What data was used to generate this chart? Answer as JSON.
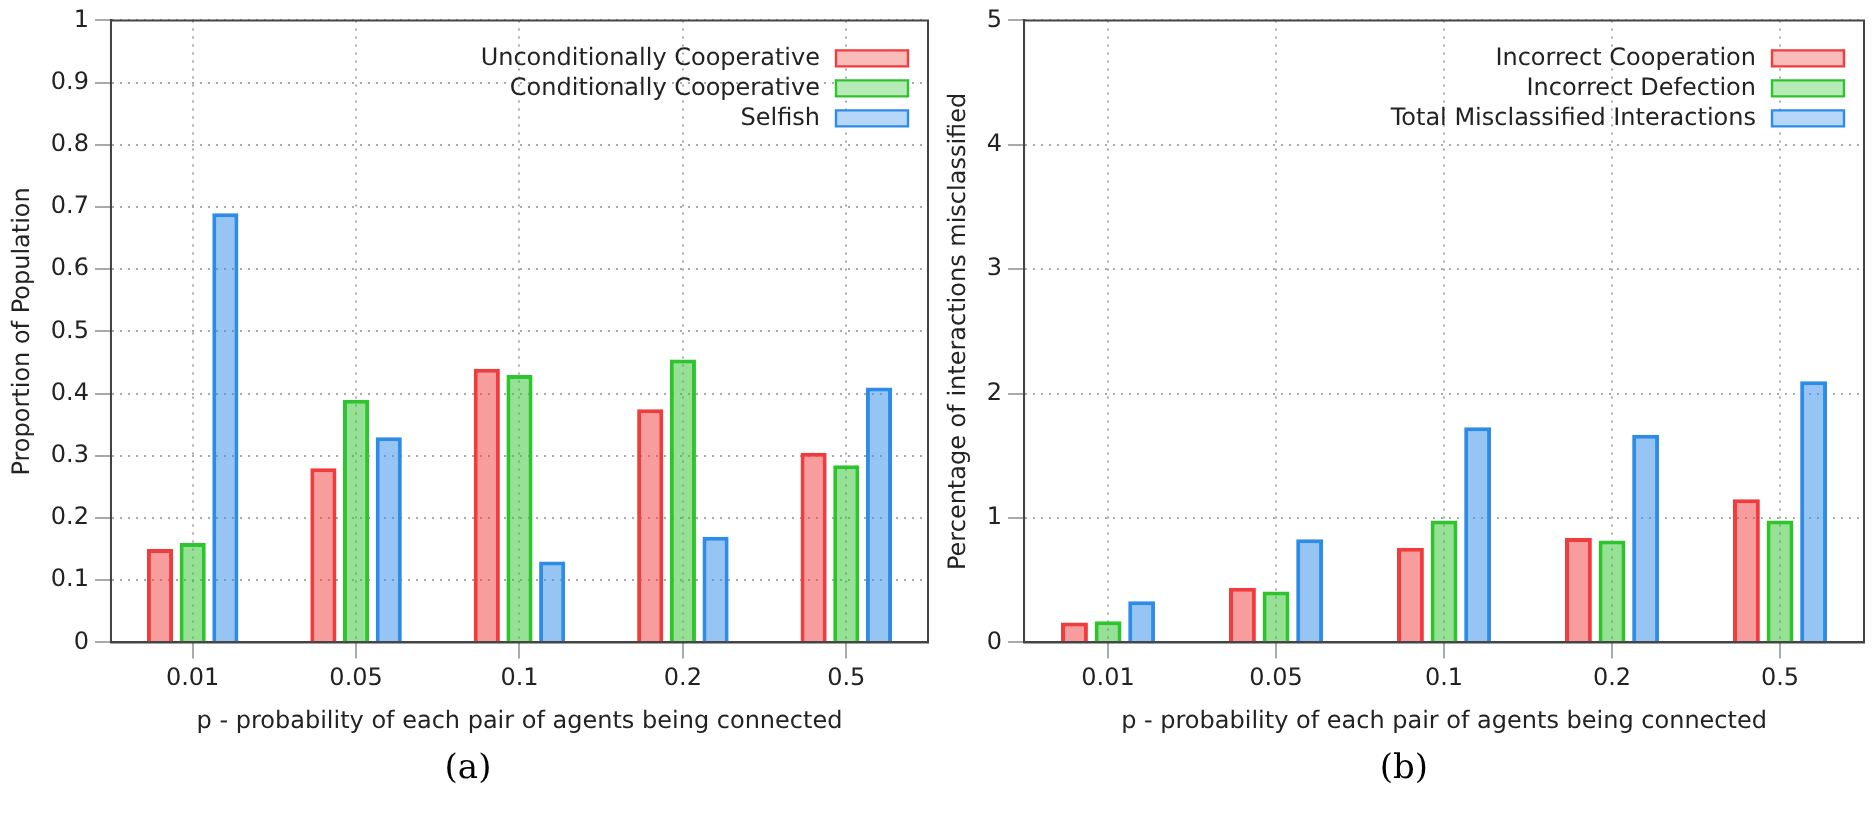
{
  "chart_data": [
    {
      "type": "bar",
      "xlabel": "p - probability of each pair of agents being connected",
      "ylabel": "Proportion of Population",
      "categories": [
        "0.01",
        "0.05",
        "0.1",
        "0.2",
        "0.5"
      ],
      "series": [
        {
          "name": "Unconditionally Cooperative",
          "color": "#f03c3c",
          "values": [
            0.15,
            0.28,
            0.44,
            0.375,
            0.305
          ]
        },
        {
          "name": "Conditionally Cooperative",
          "color": "#2ec42e",
          "values": [
            0.16,
            0.39,
            0.43,
            0.455,
            0.285
          ]
        },
        {
          "name": "Selfish",
          "color": "#2f8be8",
          "values": [
            0.69,
            0.33,
            0.13,
            0.17,
            0.41
          ]
        }
      ],
      "ylim": [
        0,
        1
      ],
      "yticks": [
        0,
        0.1,
        0.2,
        0.3,
        0.4,
        0.5,
        0.6,
        0.7,
        0.8,
        0.9,
        1
      ],
      "grid": true,
      "legend": "top right",
      "annotations": [
        "(a)"
      ]
    },
    {
      "type": "bar",
      "xlabel": "p - probability of each pair of agents being connected",
      "ylabel": "Percentage of interactions misclassified",
      "categories": [
        "0.01",
        "0.05",
        "0.1",
        "0.2",
        "0.5"
      ],
      "series": [
        {
          "name": "Incorrect Cooperation",
          "color": "#f03c3c",
          "values": [
            0.16,
            0.44,
            0.76,
            0.84,
            1.15
          ]
        },
        {
          "name": "Incorrect Defection",
          "color": "#2ec42e",
          "values": [
            0.17,
            0.41,
            0.98,
            0.82,
            0.98
          ]
        },
        {
          "name": "Total Misclassified Interactions",
          "color": "#2f8be8",
          "values": [
            0.33,
            0.83,
            1.73,
            1.67,
            2.1
          ]
        }
      ],
      "ylim": [
        0,
        5
      ],
      "yticks": [
        0,
        1,
        2,
        3,
        4,
        5
      ],
      "grid": true,
      "legend": "top right",
      "annotations": [
        "(b)"
      ]
    }
  ]
}
